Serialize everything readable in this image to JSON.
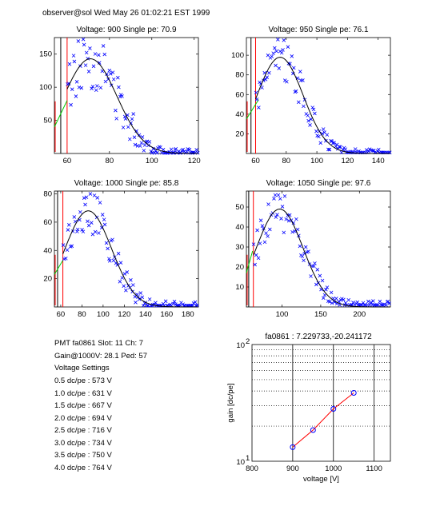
{
  "header": "observer@sol  Wed May 26 01:02:21 EST 1999",
  "info": {
    "pmt_line": "PMT fa0861 Slot: 11 Ch: 7",
    "gain_line": "Gain@1000V: 28.1 Ped: 57",
    "settings_title": "Voltage Settings",
    "settings": [
      "0.5 dc/pe : 573 V",
      "1.0 dc/pe : 631 V",
      "1.5 dc/pe : 667 V",
      "2.0 dc/pe : 694 V",
      "2.5 dc/pe : 716 V",
      "3.0 dc/pe : 734 V",
      "3.5 dc/pe : 750 V",
      "4.0 dc/pe : 764 V"
    ]
  },
  "colors": {
    "data": "#0000ff",
    "fit": "#000000",
    "ped": "#00cc00",
    "cut": "#ff0000",
    "gainline": "#ff0000"
  },
  "chart_data": [
    {
      "type": "scatter",
      "title": "Voltage: 900 Single pe: 70.9",
      "xlim": [
        54,
        122
      ],
      "ylim": [
        0,
        175
      ],
      "xticks": [
        60,
        80,
        100,
        120
      ],
      "yticks": [
        50,
        100,
        150
      ],
      "pedestal_x": 57,
      "cut_x": 60,
      "fit": {
        "mean": 71,
        "sigma": 12.5,
        "amp": 143
      },
      "ped_line": [
        [
          54,
          40
        ],
        [
          60,
          80
        ]
      ],
      "noise": 12
    },
    {
      "type": "scatter",
      "title": "Voltage: 950 Single pe: 76.1",
      "xlim": [
        54,
        148
      ],
      "ylim": [
        0,
        118
      ],
      "xticks": [
        60,
        80,
        100,
        120,
        140
      ],
      "yticks": [
        20,
        40,
        60,
        80,
        100
      ],
      "pedestal_x": 57,
      "cut_x": 60,
      "fit": {
        "mean": 76,
        "sigma": 15,
        "amp": 98
      },
      "ped_line": [
        [
          54,
          35
        ],
        [
          62,
          55
        ]
      ],
      "noise": 7
    },
    {
      "type": "scatter",
      "title": "Voltage: 1000 Single pe: 85.8",
      "xlim": [
        54,
        190
      ],
      "ylim": [
        0,
        82
      ],
      "xticks": [
        60,
        80,
        100,
        120,
        140,
        160,
        180
      ],
      "yticks": [
        20,
        40,
        60,
        80
      ],
      "pedestal_x": 57,
      "cut_x": 62,
      "fit": {
        "mean": 86,
        "sigma": 22,
        "amp": 68
      },
      "ped_line": [
        [
          54,
          23
        ],
        [
          62,
          33
        ]
      ],
      "noise": 6
    },
    {
      "type": "scatter",
      "title": "Voltage: 1050 Single pe: 97.6",
      "xlim": [
        54,
        240
      ],
      "ylim": [
        0,
        58
      ],
      "xticks": [
        100,
        150,
        200
      ],
      "yticks": [
        10,
        20,
        30,
        40,
        50
      ],
      "pedestal_x": 57,
      "cut_x": 63,
      "fit": {
        "mean": 97,
        "sigma": 30,
        "amp": 49
      },
      "ped_line": [
        [
          54,
          17
        ],
        [
          62,
          28
        ]
      ],
      "noise": 5
    },
    {
      "type": "line",
      "title": "fa0861 : 7.229733,-20.241172",
      "xlabel": "voltage [V]",
      "ylabel": "gain [dc/pe]",
      "xlim": [
        800,
        1140
      ],
      "ylim": [
        10,
        100
      ],
      "yscale": "log",
      "xticks": [
        800,
        900,
        1000,
        1100
      ],
      "ytick_labels": [
        "10",
        "10"
      ],
      "ytick_exponents": [
        "1",
        "2"
      ],
      "x": [
        900,
        950,
        1000,
        1050
      ],
      "y": [
        13.2,
        18.5,
        28.1,
        38.5
      ]
    }
  ]
}
